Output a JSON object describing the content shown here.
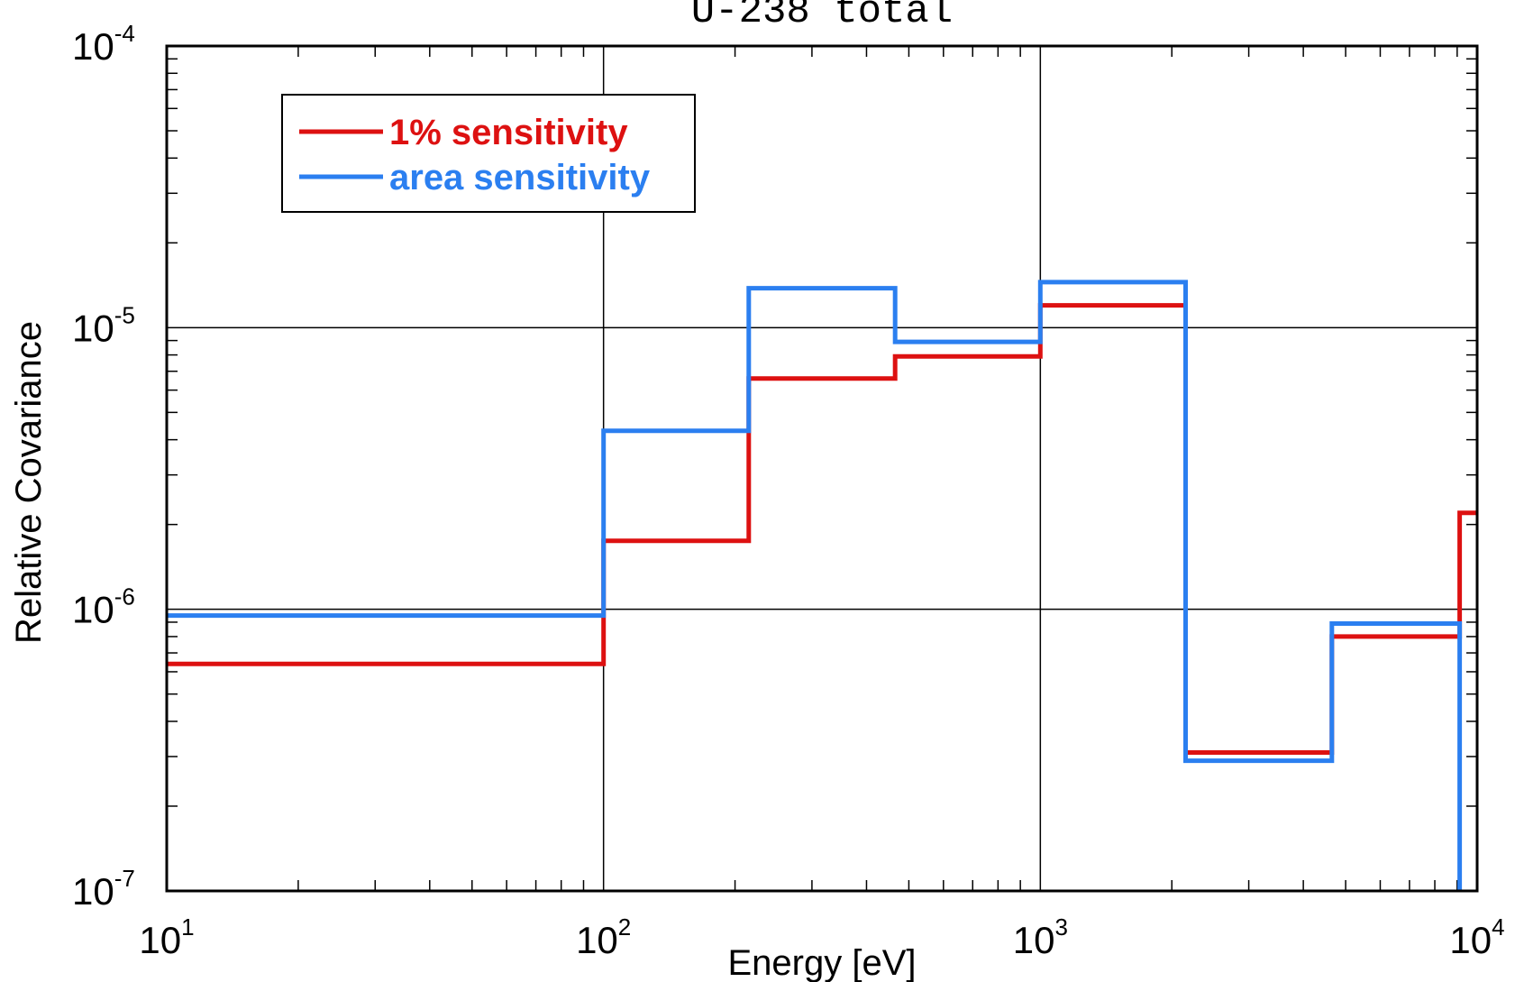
{
  "chart_data": {
    "type": "line",
    "title": "U-238   total",
    "xlabel": "Energy [eV]",
    "ylabel": "Relative Covariance",
    "xscale": "log",
    "yscale": "log",
    "xlim": [
      10,
      10000
    ],
    "ylim": [
      1e-07,
      0.0001
    ],
    "grid": "major",
    "legend_position": "top-left",
    "x_ticks": [
      {
        "base": "10",
        "exp": "1"
      },
      {
        "base": "10",
        "exp": "2"
      },
      {
        "base": "10",
        "exp": "3"
      },
      {
        "base": "10",
        "exp": "4"
      }
    ],
    "y_ticks": [
      {
        "base": "10",
        "exp": "-4"
      },
      {
        "base": "10",
        "exp": "-5"
      },
      {
        "base": "10",
        "exp": "-6"
      },
      {
        "base": "10",
        "exp": "-7"
      }
    ],
    "series": [
      {
        "name": "1% sensitivity",
        "color": "#dd1111",
        "step": "post",
        "x": [
          10,
          100,
          215,
          465,
          1000,
          2150,
          4650,
          9120,
          10000
        ],
        "y": [
          6.4e-07,
          1.75e-06,
          6.6e-06,
          7.9e-06,
          1.2e-05,
          3.1e-07,
          8e-07,
          2.2e-06,
          2.2e-06
        ]
      },
      {
        "name": "area sensitivity",
        "color": "#2b7ff0",
        "step": "post",
        "x": [
          10,
          100,
          215,
          465,
          1000,
          2150,
          4650,
          9120
        ],
        "y": [
          9.5e-07,
          4.3e-06,
          1.38e-05,
          8.9e-06,
          1.45e-05,
          2.9e-07,
          8.9e-07,
          1e-07
        ]
      }
    ]
  }
}
